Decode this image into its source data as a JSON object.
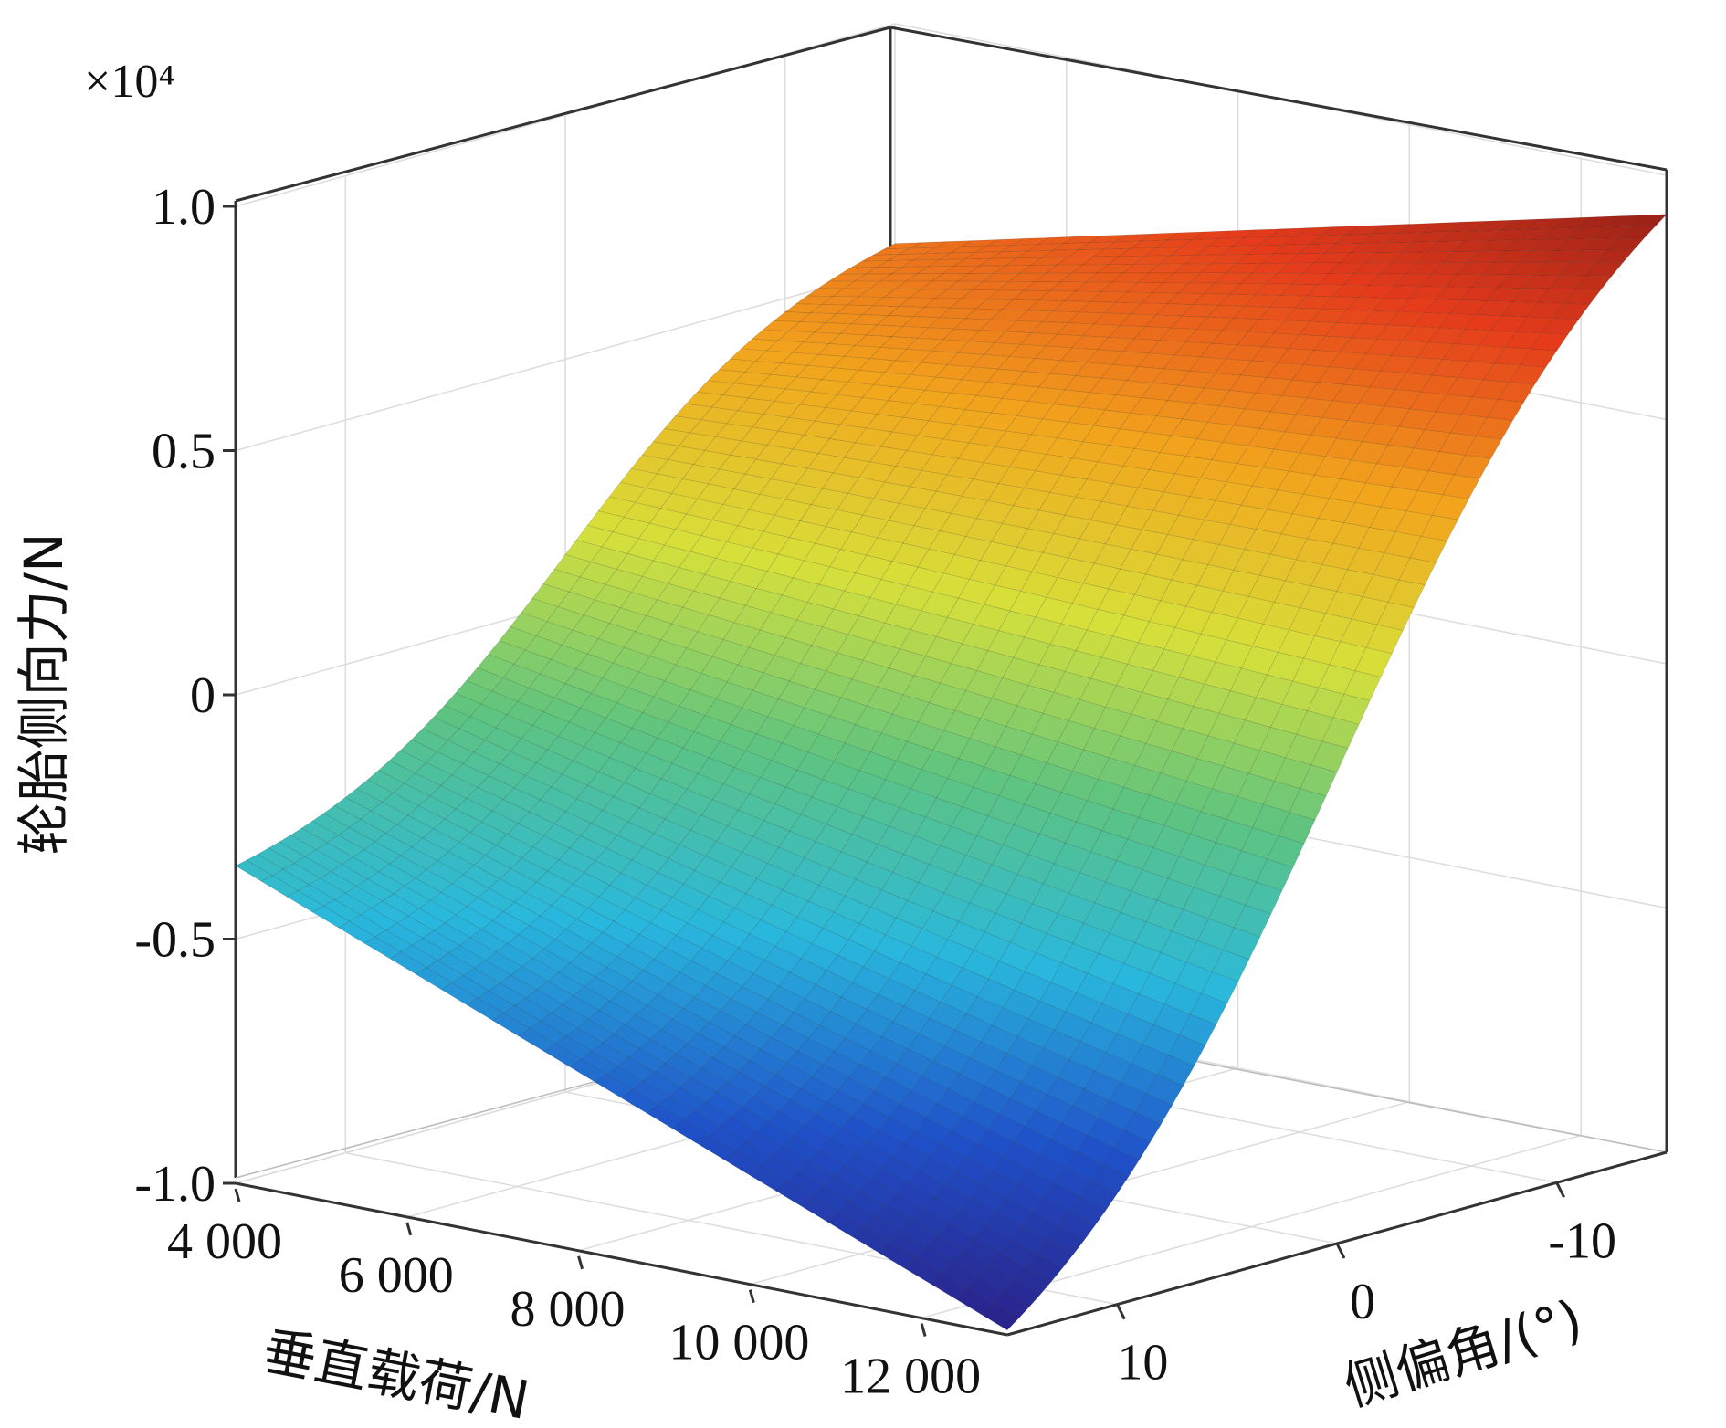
{
  "chart_data": {
    "type": "surface",
    "title": "",
    "xlabel": "垂直载荷/N",
    "ylabel": "侧偏角/(°)",
    "zlabel": "轮胎侧向力/N",
    "z_multiplier": "×10⁴",
    "x_ticks": [
      "4 000",
      "6 000",
      "8 000",
      "10 000",
      "12 000"
    ],
    "y_ticks": [
      "10",
      "0",
      "-10"
    ],
    "z_ticks": [
      "1.0",
      "0.5",
      "0",
      "-0.5",
      "-1.0"
    ],
    "xlim": [
      4000,
      13000
    ],
    "ylim": [
      -15,
      15
    ],
    "zlim": [
      -1.0,
      1.0
    ],
    "z_unit_scale": 10000,
    "grid": true,
    "colormap": "parula-jet",
    "colormap_colors": [
      "#2b1f86",
      "#1f50c8",
      "#29b8dd",
      "#5fc47f",
      "#d7e03a",
      "#f2a51c",
      "#e53b1b",
      "#7a1616"
    ],
    "samples": {
      "x_load": [
        4000,
        13000
      ],
      "y_slip_angle": [
        15,
        -15
      ],
      "z_force_1e4": [
        [
          -0.35,
          -0.99
        ],
        [
          0.55,
          0.92
        ]
      ]
    }
  }
}
